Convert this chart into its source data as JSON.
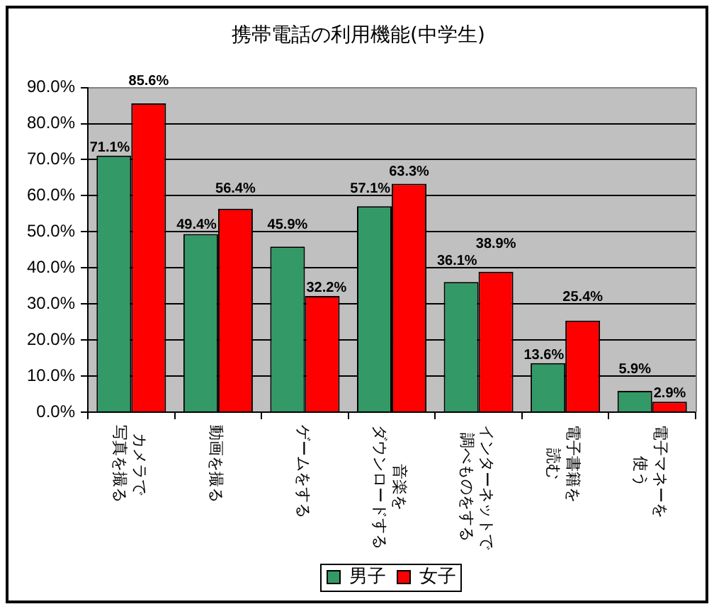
{
  "chart_data": {
    "type": "bar",
    "title": "携帯電話の利用機能(中学生)",
    "categories": [
      "カメラで写真を撮る",
      "動画を撮る",
      "ゲームをする",
      "音楽をダウンロードする",
      "インターネットで調べものをする",
      "電子書籍を読む",
      "電子マネーを使う"
    ],
    "series": [
      {
        "name": "男子",
        "color": "#339966",
        "values": [
          71.1,
          49.4,
          45.9,
          57.1,
          36.1,
          13.6,
          5.9
        ],
        "value_labels": [
          "71.1%",
          "49.4%",
          "45.9%",
          "57.1%",
          "36.1%",
          "13.6%",
          "5.9%"
        ]
      },
      {
        "name": "女子",
        "color": "#ff0000",
        "values": [
          85.6,
          56.4,
          32.2,
          63.3,
          38.9,
          25.4,
          2.9
        ],
        "value_labels": [
          "85.6%",
          "56.4%",
          "32.2%",
          "63.3%",
          "38.9%",
          "25.4%",
          "2.9%"
        ]
      }
    ],
    "ylim": [
      0,
      90
    ],
    "yticks": [
      {
        "value": 0,
        "label": "0.0%"
      },
      {
        "value": 10,
        "label": "10.0%"
      },
      {
        "value": 20,
        "label": "20.0%"
      },
      {
        "value": 30,
        "label": "30.0%"
      },
      {
        "value": 40,
        "label": "40.0%"
      },
      {
        "value": 50,
        "label": "50.0%"
      },
      {
        "value": 60,
        "label": "60.0%"
      },
      {
        "value": 70,
        "label": "70.0%"
      },
      {
        "value": 80,
        "label": "80.0%"
      },
      {
        "value": 90,
        "label": "90.0%"
      }
    ],
    "grid": "y",
    "legend": "bottom"
  }
}
